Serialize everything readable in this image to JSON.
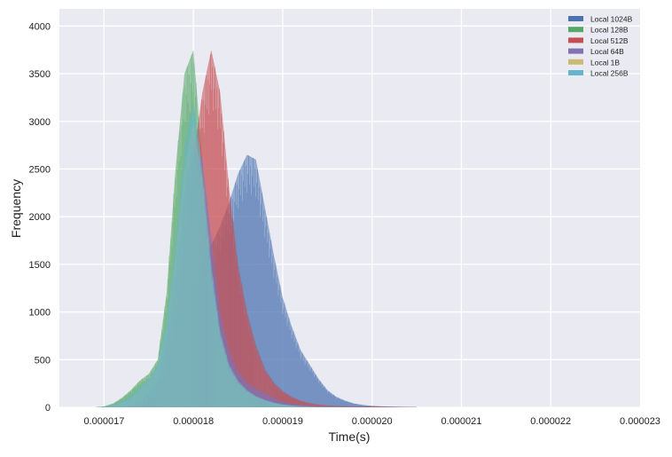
{
  "chart_data": {
    "type": "area",
    "title": "",
    "xlabel": "Time(s)",
    "ylabel": "Frequency",
    "xlim": [
      1.65e-05,
      2.3e-05
    ],
    "ylim": [
      0,
      4180
    ],
    "grid": true,
    "legend_position": "top-right",
    "x_ticks": [
      "0.000017",
      "0.000018",
      "0.000019",
      "0.000020",
      "0.000021",
      "0.000022",
      "0.000023"
    ],
    "x_tick_values": [
      1.7e-05,
      1.8e-05,
      1.9e-05,
      2e-05,
      2.1e-05,
      2.2e-05,
      2.3e-05
    ],
    "y_ticks": [
      "0",
      "500",
      "1000",
      "1500",
      "2000",
      "2500",
      "3000",
      "3500",
      "4000"
    ],
    "y_tick_values": [
      0,
      500,
      1000,
      1500,
      2000,
      2500,
      3000,
      3500,
      4000
    ],
    "x": [
      1.69e-05,
      1.7e-05,
      1.71e-05,
      1.72e-05,
      1.73e-05,
      1.74e-05,
      1.75e-05,
      1.76e-05,
      1.77e-05,
      1.78e-05,
      1.79e-05,
      1.8e-05,
      1.81e-05,
      1.82e-05,
      1.83e-05,
      1.84e-05,
      1.85e-05,
      1.86e-05,
      1.87e-05,
      1.88e-05,
      1.89e-05,
      1.9e-05,
      1.91e-05,
      1.92e-05,
      1.93e-05,
      1.94e-05,
      1.95e-05,
      1.96e-05,
      1.97e-05,
      1.98e-05,
      1.99e-05,
      2e-05,
      2.01e-05,
      2.02e-05,
      2.03e-05,
      2.04e-05,
      2.05e-05
    ],
    "series": [
      {
        "name": "Local 1024B",
        "color": "#4c72b0",
        "values": [
          0,
          0,
          0,
          0,
          0,
          0,
          20,
          60,
          150,
          400,
          800,
          1200,
          1500,
          1700,
          1900,
          2150,
          2450,
          2650,
          2600,
          2100,
          1600,
          1150,
          850,
          600,
          450,
          300,
          180,
          110,
          70,
          40,
          25,
          15,
          10,
          8,
          6,
          4,
          3
        ]
      },
      {
        "name": "Local 128B",
        "color": "#55a868",
        "values": [
          0,
          10,
          40,
          100,
          180,
          280,
          350,
          500,
          1200,
          2500,
          3500,
          3750,
          2600,
          1200,
          500,
          250,
          150,
          90,
          50,
          30,
          20,
          10,
          5,
          3,
          2,
          1,
          1,
          0,
          0,
          0,
          0,
          0,
          0,
          0,
          0,
          0,
          0
        ]
      },
      {
        "name": "Local 512B",
        "color": "#c44e52",
        "values": [
          0,
          0,
          0,
          0,
          5,
          20,
          60,
          150,
          400,
          900,
          1700,
          2600,
          3300,
          3750,
          3300,
          2300,
          1500,
          1000,
          650,
          400,
          260,
          170,
          110,
          70,
          45,
          30,
          20,
          15,
          12,
          10,
          8,
          10,
          8,
          5,
          3,
          2,
          1
        ]
      },
      {
        "name": "Local 64B",
        "color": "#8172b2",
        "values": [
          0,
          0,
          0,
          5,
          20,
          60,
          150,
          300,
          700,
          1300,
          2200,
          2800,
          2600,
          1800,
          1000,
          600,
          380,
          260,
          200,
          150,
          100,
          60,
          40,
          25,
          15,
          10,
          8,
          6,
          5,
          4,
          3,
          2,
          2,
          1,
          1,
          0,
          0
        ]
      },
      {
        "name": "Local 1B",
        "color": "#ccb974",
        "values": [
          0,
          5,
          15,
          50,
          100,
          180,
          280,
          420,
          850,
          1600,
          2500,
          3000,
          2400,
          1400,
          750,
          420,
          260,
          170,
          110,
          70,
          45,
          28,
          18,
          10,
          6,
          4,
          3,
          2,
          1,
          1,
          0,
          0,
          0,
          0,
          0,
          0,
          0
        ]
      },
      {
        "name": "Local 256B",
        "color": "#64b5cd",
        "values": [
          0,
          5,
          20,
          60,
          120,
          200,
          300,
          450,
          900,
          1700,
          2700,
          3200,
          2500,
          1500,
          800,
          450,
          280,
          180,
          120,
          80,
          50,
          30,
          20,
          12,
          8,
          5,
          3,
          2,
          1,
          1,
          0,
          0,
          0,
          0,
          0,
          0,
          0
        ]
      }
    ]
  }
}
